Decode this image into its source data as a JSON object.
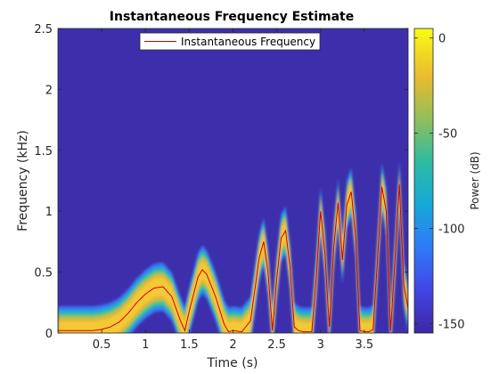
{
  "chart_data": {
    "type": "heatmap",
    "title": "Instantaneous Frequency Estimate",
    "xlabel": "Time (s)",
    "ylabel": "Frequency (kHz)",
    "xlim": [
      0,
      4
    ],
    "ylim": [
      0,
      2.5
    ],
    "xticks": [
      0.5,
      1,
      1.5,
      2,
      2.5,
      3,
      3.5
    ],
    "xtick_labels": [
      "0.5",
      "1",
      "1.5",
      "2",
      "2.5",
      "3",
      "3.5"
    ],
    "yticks": [
      0,
      0.5,
      1,
      1.5,
      2,
      2.5
    ],
    "ytick_labels": [
      "0",
      "0.5",
      "1",
      "1.5",
      "2",
      "2.5"
    ],
    "colorbar": {
      "label": "Power (dB)",
      "range": [
        -155,
        5
      ],
      "ticks": [
        0,
        -50,
        -100,
        -150
      ],
      "tick_labels": [
        "0",
        "-50",
        "-100",
        "-150"
      ],
      "colormap": "parula"
    },
    "background_color": "#3d2fab",
    "legend": {
      "location": "top",
      "entries": [
        "Instantaneous Frequency"
      ]
    },
    "series": [
      {
        "name": "Instantaneous Frequency",
        "color": "#d40000",
        "x": [
          0,
          0.2,
          0.4,
          0.5,
          0.6,
          0.7,
          0.8,
          0.9,
          1.0,
          1.1,
          1.2,
          1.3,
          1.4,
          1.45,
          1.5,
          1.6,
          1.65,
          1.7,
          1.8,
          1.9,
          1.95,
          2.0,
          2.1,
          2.2,
          2.3,
          2.35,
          2.4,
          2.45,
          2.5,
          2.55,
          2.6,
          2.65,
          2.7,
          2.75,
          2.8,
          2.9,
          2.95,
          3.0,
          3.05,
          3.1,
          3.15,
          3.2,
          3.25,
          3.3,
          3.35,
          3.4,
          3.45,
          3.5,
          3.55,
          3.6,
          3.65,
          3.7,
          3.75,
          3.8,
          3.85,
          3.9,
          3.95
        ],
        "y": [
          0.02,
          0.02,
          0.02,
          0.03,
          0.05,
          0.09,
          0.16,
          0.25,
          0.32,
          0.37,
          0.38,
          0.3,
          0.1,
          0.02,
          0.18,
          0.46,
          0.52,
          0.48,
          0.3,
          0.07,
          0.01,
          0.02,
          0.01,
          0.1,
          0.62,
          0.75,
          0.5,
          0.02,
          0.45,
          0.78,
          0.84,
          0.55,
          0.05,
          0.02,
          0.01,
          0.01,
          0.45,
          1.0,
          0.65,
          0.05,
          0.7,
          1.07,
          0.6,
          1.05,
          1.16,
          0.8,
          0.02,
          0.01,
          0.01,
          0.03,
          0.6,
          1.2,
          1.0,
          0.02,
          0.6,
          1.22,
          0.4
        ]
      }
    ]
  }
}
